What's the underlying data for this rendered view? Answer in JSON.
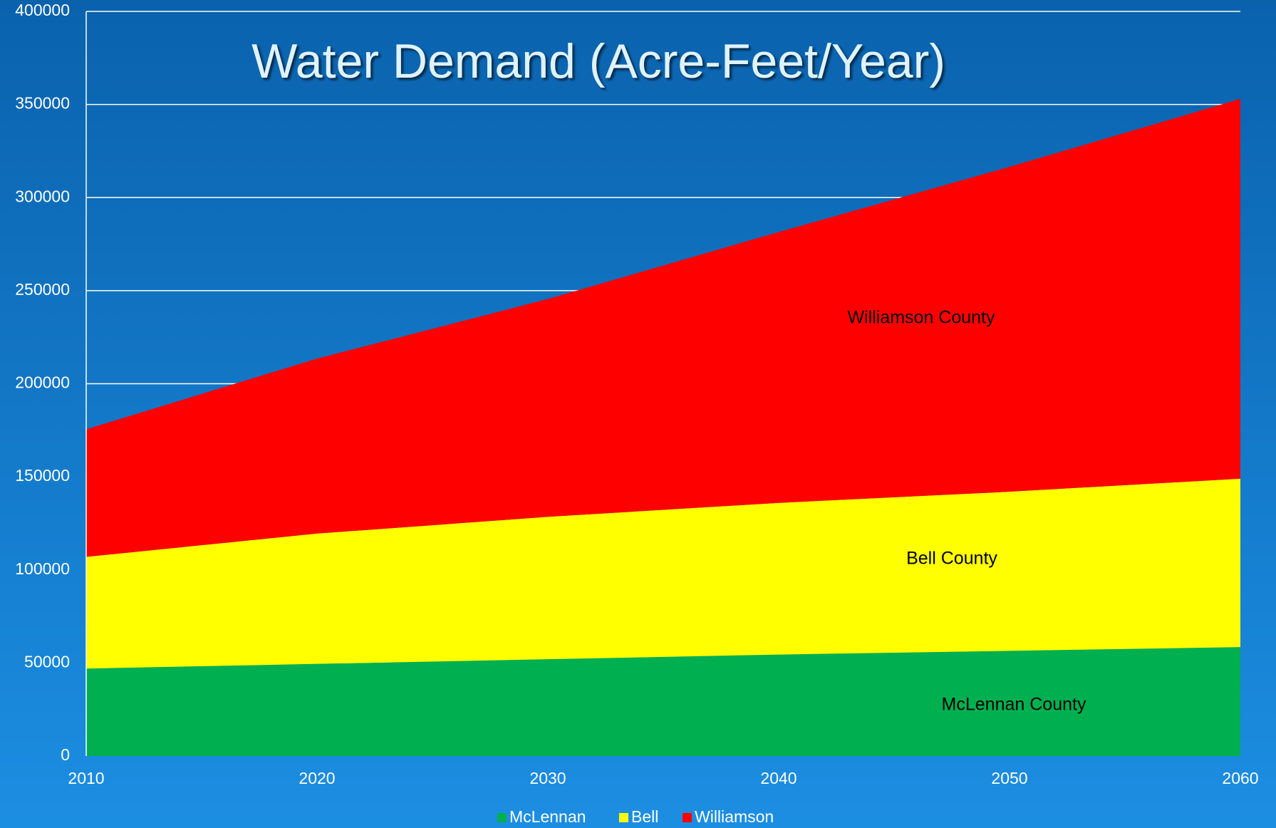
{
  "chart_data": {
    "type": "stacked_area",
    "title": "Water Demand (Acre-Feet/Year)",
    "x": [
      2010,
      2020,
      2030,
      2040,
      2050,
      2060
    ],
    "series": [
      {
        "name": "McLennan",
        "color": "#00b050",
        "annotation": "McLennan County",
        "values": [
          47000,
          49500,
          52000,
          54500,
          56500,
          58500
        ]
      },
      {
        "name": "Bell",
        "color": "#ffff00",
        "annotation": "Bell County",
        "values": [
          60000,
          70000,
          76500,
          81500,
          85500,
          90500
        ]
      },
      {
        "name": "Williamson",
        "color": "#ff0000",
        "annotation": "Williamson County",
        "values": [
          68500,
          94000,
          117000,
          145500,
          174500,
          204000
        ]
      }
    ],
    "xlim": [
      2010,
      2060
    ],
    "xticks": [
      2010,
      2020,
      2030,
      2040,
      2050,
      2060
    ],
    "ylim": [
      0,
      400000
    ],
    "yticks": [
      0,
      50000,
      100000,
      150000,
      200000,
      250000,
      300000,
      350000,
      400000
    ],
    "grid": true,
    "legend": "bottom"
  }
}
